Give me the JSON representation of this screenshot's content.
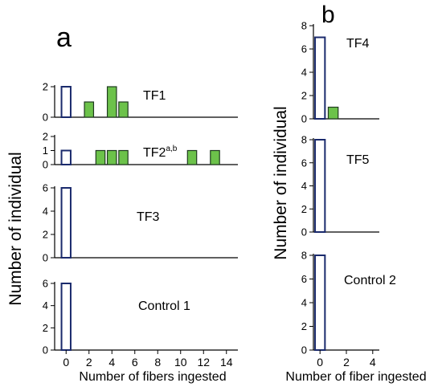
{
  "figure": {
    "panel_a_label": "a",
    "panel_b_label": "b",
    "panel_a_ylabel": "Number of individual",
    "panel_a_xlabel": "Number of fibers ingested",
    "panel_b_ylabel": "Number of individual",
    "panel_b_xlabel": "Number of fiber ingested"
  },
  "colors": {
    "treated": "#6cc24a",
    "control_outline": "#1a2a6c",
    "axis": "#000000"
  },
  "chart_data": [
    {
      "type": "bar",
      "panel": "a",
      "label": "TF1",
      "superscript": "",
      "x": [
        0,
        2,
        4,
        5
      ],
      "values": [
        2,
        1,
        2,
        1
      ],
      "fill": [
        "white",
        "green",
        "green",
        "green"
      ],
      "xlim": [
        -1,
        15
      ],
      "ylim": [
        0,
        2
      ],
      "yticks": [
        0,
        2
      ],
      "xticks": [],
      "xlabel": "",
      "ylabel": "",
      "grid": false
    },
    {
      "type": "bar",
      "panel": "a",
      "label": "TF2",
      "superscript": "a,b",
      "x": [
        0,
        3,
        4,
        5,
        11,
        13
      ],
      "values": [
        1,
        1,
        1,
        1,
        1,
        1
      ],
      "fill": [
        "white",
        "green",
        "green",
        "green",
        "green",
        "green"
      ],
      "xlim": [
        -1,
        15
      ],
      "ylim": [
        0,
        2
      ],
      "yticks": [
        0,
        1,
        2
      ],
      "xticks": [],
      "xlabel": "",
      "ylabel": "",
      "grid": false
    },
    {
      "type": "bar",
      "panel": "a",
      "label": "TF3",
      "superscript": "",
      "x": [
        0
      ],
      "values": [
        6
      ],
      "fill": [
        "white"
      ],
      "xlim": [
        -1,
        15
      ],
      "ylim": [
        0,
        6
      ],
      "yticks": [
        0,
        2,
        4,
        6
      ],
      "xticks": [],
      "xlabel": "",
      "ylabel": "",
      "grid": false
    },
    {
      "type": "bar",
      "panel": "a",
      "label": "Control 1",
      "superscript": "",
      "x": [
        0
      ],
      "values": [
        6
      ],
      "fill": [
        "white"
      ],
      "xlim": [
        -1,
        15
      ],
      "ylim": [
        0,
        6
      ],
      "yticks": [
        0,
        2,
        4,
        6
      ],
      "xticks": [
        0,
        2,
        4,
        6,
        8,
        10,
        12,
        14
      ],
      "xlabel": "Number of fibers ingested",
      "ylabel": "",
      "grid": false
    },
    {
      "type": "bar",
      "panel": "b",
      "label": "TF4",
      "superscript": "",
      "x": [
        0,
        1
      ],
      "values": [
        7,
        1
      ],
      "fill": [
        "white",
        "green"
      ],
      "xlim": [
        -0.5,
        4.5
      ],
      "ylim": [
        0,
        8
      ],
      "yticks": [
        0,
        2,
        4,
        6,
        8
      ],
      "xticks": [],
      "xlabel": "",
      "ylabel": "",
      "grid": false
    },
    {
      "type": "bar",
      "panel": "b",
      "label": "TF5",
      "superscript": "",
      "x": [
        0
      ],
      "values": [
        8
      ],
      "fill": [
        "white"
      ],
      "xlim": [
        -0.5,
        4.5
      ],
      "ylim": [
        0,
        8
      ],
      "yticks": [
        0,
        2,
        4,
        6,
        8
      ],
      "xticks": [],
      "xlabel": "",
      "ylabel": "",
      "grid": false
    },
    {
      "type": "bar",
      "panel": "b",
      "label": "Control 2",
      "superscript": "",
      "x": [
        0
      ],
      "values": [
        8
      ],
      "fill": [
        "white"
      ],
      "xlim": [
        -0.5,
        4.5
      ],
      "ylim": [
        0,
        8
      ],
      "yticks": [
        0,
        2,
        4,
        6,
        8
      ],
      "xticks": [
        0,
        2,
        4
      ],
      "xlabel": "Number of fiber ingested",
      "ylabel": "",
      "grid": false
    }
  ]
}
